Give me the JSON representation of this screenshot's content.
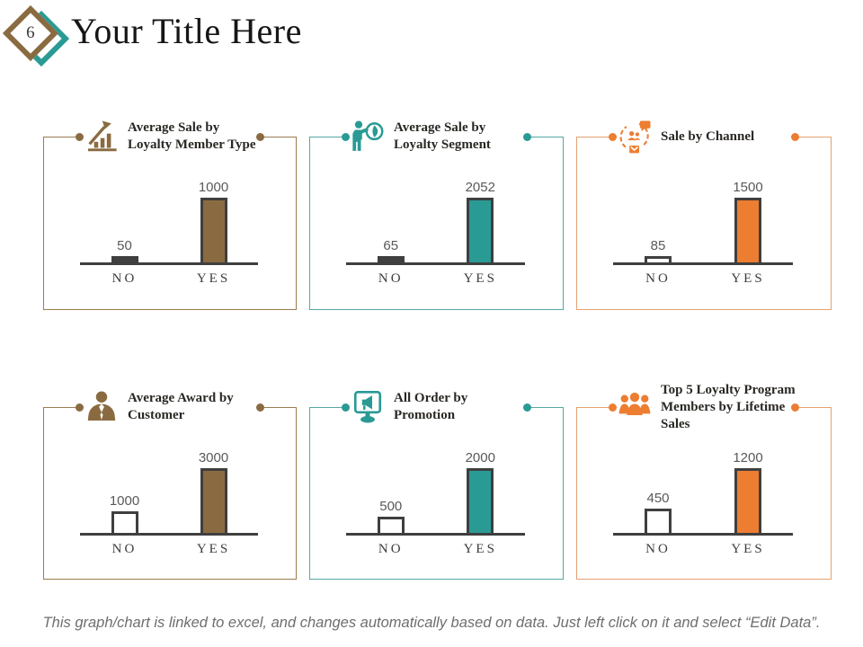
{
  "slide": {
    "page_number": "6",
    "title": "Your Title Here",
    "footer": "This graph/chart is linked to excel, and changes automatically based on data. Just left click on it and select “Edit Data”."
  },
  "colors": {
    "brown": "#8a6b41",
    "teal": "#2a9a94",
    "orange": "#ed7d31",
    "dark": "#3f3f3f"
  },
  "chart_data": [
    {
      "type": "bar",
      "title": "Average Sale by Loyalty Member Type",
      "icon": "growth-chart-icon",
      "categories": [
        "NO",
        "YES"
      ],
      "values": [
        50,
        1000
      ],
      "bar_colors": [
        "#404040",
        "#8a6b41"
      ],
      "accent": "#8a6b41",
      "border": "#9b7c50",
      "xlabel": "",
      "ylabel": "",
      "legend": "none",
      "grid": "off"
    },
    {
      "type": "bar",
      "title": "Average Sale by Loyalty Segment",
      "icon": "person-presenting-icon",
      "categories": [
        "NO",
        "YES"
      ],
      "values": [
        65,
        2052
      ],
      "bar_colors": [
        "#404040",
        "#2a9a94"
      ],
      "accent": "#2a9a94",
      "border": "#55a7a2",
      "xlabel": "",
      "ylabel": "",
      "legend": "none",
      "grid": "off"
    },
    {
      "type": "bar",
      "title": "Sale by Channel",
      "icon": "channel-network-icon",
      "categories": [
        "NO",
        "YES"
      ],
      "values": [
        85,
        1500
      ],
      "bar_colors": [
        "#ffffff",
        "#ed7d31"
      ],
      "accent": "#ed7d31",
      "border": "#e2a273",
      "xlabel": "",
      "ylabel": "",
      "legend": "none",
      "grid": "off"
    },
    {
      "type": "bar",
      "title": "Average Award by Customer",
      "icon": "businessman-icon",
      "categories": [
        "NO",
        "YES"
      ],
      "values": [
        1000,
        3000
      ],
      "bar_colors": [
        "#ffffff",
        "#8a6b41"
      ],
      "accent": "#8a6b41",
      "border": "#9b7c50",
      "xlabel": "",
      "ylabel": "",
      "legend": "none",
      "grid": "off"
    },
    {
      "type": "bar",
      "title": "All Order by Promotion",
      "icon": "monitor-megaphone-icon",
      "categories": [
        "NO",
        "YES"
      ],
      "values": [
        500,
        2000
      ],
      "bar_colors": [
        "#ffffff",
        "#2a9a94"
      ],
      "accent": "#2a9a94",
      "border": "#55a7a2",
      "xlabel": "",
      "ylabel": "",
      "legend": "none",
      "grid": "off"
    },
    {
      "type": "bar",
      "title": "Top 5 Loyalty Program Members by Lifetime Sales",
      "icon": "people-group-icon",
      "categories": [
        "NO",
        "YES"
      ],
      "values": [
        450,
        1200
      ],
      "bar_colors": [
        "#ffffff",
        "#ed7d31"
      ],
      "accent": "#ed7d31",
      "border": "#e2a273",
      "xlabel": "",
      "ylabel": "",
      "legend": "none",
      "grid": "off"
    }
  ]
}
